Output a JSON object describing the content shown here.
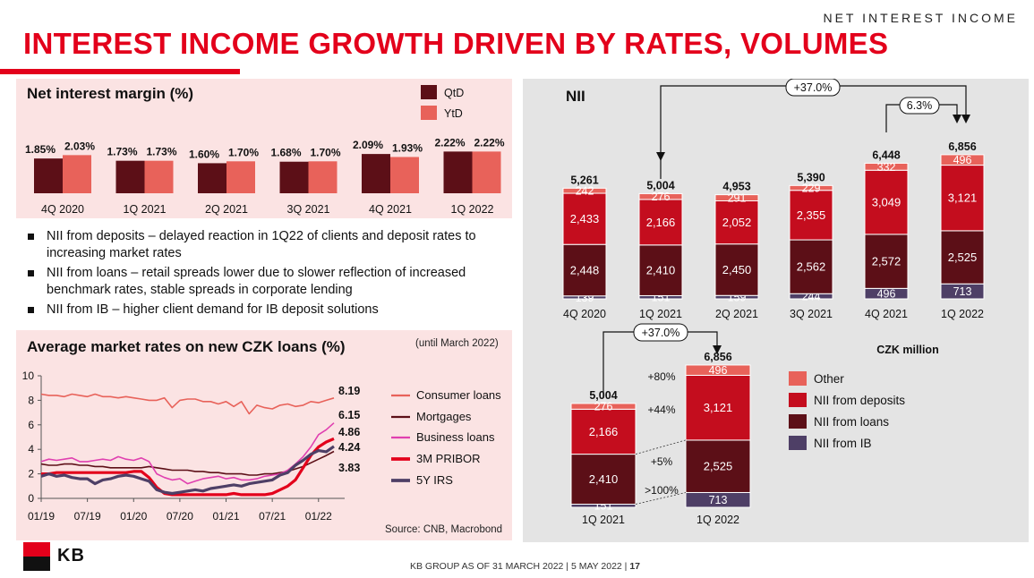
{
  "header": {
    "section_label": "NET INTEREST INCOME",
    "title": "INTEREST INCOME GROWTH DRIVEN BY RATES, VOLUMES"
  },
  "brand": {
    "red": "#e3001b",
    "logo_text": "KB"
  },
  "footer": {
    "group": "KB GROUP AS OF 31 MARCH 2022",
    "date": "5 MAY 2022",
    "page": "17"
  },
  "bullets": [
    "NII from deposits – delayed reaction in 1Q22 of clients and deposit rates to increasing market rates",
    "NII from loans – retail spreads lower due to slower reflection of increased benchmark rates, stable spreads in corporate lending",
    "NII from IB – higher client demand for IB deposit solutions"
  ],
  "colors": {
    "qtd": "#5c0f17",
    "ytd": "#e8625a",
    "other": "#e8625a",
    "deposits": "#c40d1e",
    "loans": "#5c0f17",
    "ib": "#4e3f66",
    "consumer": "#e8625a",
    "mortgages": "#5c0f17",
    "business": "#e040b0",
    "pribor": "#e3001b",
    "irs": "#4e3f66"
  },
  "chart_data": [
    {
      "type": "bar",
      "title": "Net interest margin (%)",
      "categories": [
        "4Q 2020",
        "1Q 2021",
        "2Q 2021",
        "3Q 2021",
        "4Q 2021",
        "1Q 2022"
      ],
      "series": [
        {
          "name": "QtD",
          "values": [
            1.85,
            1.73,
            1.6,
            1.68,
            2.09,
            2.22
          ],
          "labels": [
            "1.85%",
            "1.73%",
            "1.60%",
            "1.68%",
            "2.09%",
            "2.22%"
          ]
        },
        {
          "name": "YtD",
          "values": [
            2.03,
            1.73,
            1.7,
            1.7,
            1.93,
            2.22
          ],
          "labels": [
            "2.03%",
            "1.73%",
            "1.70%",
            "1.70%",
            "1.93%",
            "2.22%"
          ]
        }
      ],
      "legend_position": "top-right"
    },
    {
      "type": "bar",
      "stacked": true,
      "title": "NII",
      "unit": "CZK million",
      "categories": [
        "4Q 2020",
        "1Q 2021",
        "2Q 2021",
        "3Q 2021",
        "4Q 2021",
        "1Q 2022"
      ],
      "totals": [
        5261,
        5004,
        4953,
        5390,
        6448,
        6856
      ],
      "total_labels": [
        "5,261",
        "5,004",
        "4,953",
        "5,390",
        "6,448",
        "6,856"
      ],
      "series": [
        {
          "name": "NII from IB",
          "values": [
            139,
            151,
            159,
            244,
            496,
            713
          ],
          "labels": [
            "139",
            "151",
            "159",
            "244",
            "496",
            "713"
          ]
        },
        {
          "name": "NII from loans",
          "values": [
            2448,
            2410,
            2450,
            2562,
            2572,
            2525
          ],
          "labels": [
            "2,448",
            "2,410",
            "2,450",
            "2,562",
            "2,572",
            "2,525"
          ]
        },
        {
          "name": "NII from deposits",
          "values": [
            2433,
            2166,
            2052,
            2355,
            3049,
            3121
          ],
          "labels": [
            "2,433",
            "2,166",
            "2,052",
            "2,355",
            "3,049",
            "3,121"
          ]
        },
        {
          "name": "Other",
          "values": [
            242,
            276,
            291,
            229,
            332,
            496
          ],
          "labels": [
            "242",
            "276",
            "291",
            "229",
            "332",
            "496"
          ]
        }
      ],
      "annotations": [
        {
          "text": "+37.0%",
          "from": "1Q 2021",
          "to": "1Q 2022"
        },
        {
          "text": "6.3%",
          "from": "4Q 2021",
          "to": "1Q 2022"
        }
      ]
    },
    {
      "type": "bar",
      "stacked": true,
      "categories": [
        "1Q 2021",
        "1Q 2022"
      ],
      "totals": [
        5004,
        6856
      ],
      "total_labels": [
        "5,004",
        "6,856"
      ],
      "series": [
        {
          "name": "NII from IB",
          "values": [
            151,
            713
          ],
          "labels": [
            "151",
            "713"
          ],
          "change": ">100%"
        },
        {
          "name": "NII from loans",
          "values": [
            2410,
            2525
          ],
          "labels": [
            "2,410",
            "2,525"
          ],
          "change": "+5%"
        },
        {
          "name": "NII from deposits",
          "values": [
            2166,
            3121
          ],
          "labels": [
            "2,166",
            "3,121"
          ],
          "change": "+44%"
        },
        {
          "name": "Other",
          "values": [
            276,
            496
          ],
          "labels": [
            "276",
            "496"
          ],
          "change": "+80%"
        }
      ],
      "annotations": [
        {
          "text": "+37.0%",
          "from": "1Q 2021",
          "to": "1Q 2022"
        }
      ],
      "legend": [
        "Other",
        "NII from deposits",
        "NII from loans",
        "NII from IB"
      ],
      "legend_position": "right"
    },
    {
      "type": "line",
      "title": "Average market rates on new CZK loans (%)",
      "note": "(until March 2022)",
      "source": "Source: CNB, Macrobond",
      "x_ticks": [
        "01/19",
        "07/19",
        "01/20",
        "07/20",
        "01/21",
        "07/21",
        "01/22"
      ],
      "ylim": [
        0,
        10
      ],
      "y_ticks": [
        "0",
        "2",
        "4",
        "6",
        "8",
        "10"
      ],
      "months": 39,
      "series": [
        {
          "name": "Consumer loans",
          "end_label": "8.19",
          "values": [
            8.5,
            8.4,
            8.4,
            8.3,
            8.5,
            8.4,
            8.3,
            8.5,
            8.3,
            8.3,
            8.2,
            8.3,
            8.2,
            8.1,
            8.0,
            8.0,
            8.2,
            7.4,
            8.0,
            8.1,
            8.1,
            7.9,
            7.9,
            7.7,
            7.9,
            7.5,
            7.9,
            6.9,
            7.6,
            7.4,
            7.3,
            7.6,
            7.7,
            7.5,
            7.6,
            7.9,
            7.8,
            8.0,
            8.19
          ]
        },
        {
          "name": "Mortgages",
          "end_label": "3.83",
          "values": [
            2.8,
            2.7,
            2.7,
            2.8,
            2.8,
            2.7,
            2.7,
            2.6,
            2.6,
            2.5,
            2.5,
            2.5,
            2.5,
            2.5,
            2.6,
            2.5,
            2.4,
            2.3,
            2.3,
            2.3,
            2.2,
            2.2,
            2.1,
            2.1,
            2.0,
            2.0,
            2.0,
            1.9,
            1.9,
            2.0,
            2.0,
            2.1,
            2.2,
            2.4,
            2.6,
            2.9,
            3.2,
            3.5,
            3.83
          ]
        },
        {
          "name": "Business loans",
          "end_label": "6.15",
          "values": [
            3.0,
            3.2,
            3.1,
            3.2,
            3.3,
            3.0,
            3.0,
            3.1,
            3.2,
            3.1,
            3.4,
            3.2,
            3.1,
            3.3,
            3.0,
            2.0,
            1.7,
            1.5,
            1.6,
            1.2,
            1.4,
            1.6,
            1.7,
            1.8,
            1.6,
            1.7,
            1.5,
            1.5,
            1.6,
            1.8,
            1.9,
            2.0,
            2.3,
            2.8,
            3.4,
            4.2,
            5.2,
            5.6,
            6.15
          ]
        },
        {
          "name": "3M PRIBOR",
          "end_label": "4.86",
          "values": [
            2.0,
            2.0,
            2.1,
            2.1,
            2.1,
            2.1,
            2.1,
            2.1,
            2.1,
            2.1,
            2.1,
            2.1,
            2.2,
            2.2,
            1.7,
            0.9,
            0.4,
            0.3,
            0.3,
            0.3,
            0.3,
            0.3,
            0.3,
            0.3,
            0.3,
            0.4,
            0.3,
            0.3,
            0.3,
            0.3,
            0.4,
            0.7,
            1.0,
            1.5,
            2.5,
            3.5,
            4.2,
            4.6,
            4.86
          ]
        },
        {
          "name": "5Y IRS",
          "end_label": "4.24",
          "values": [
            1.8,
            2.0,
            1.8,
            1.9,
            1.7,
            1.6,
            1.6,
            1.2,
            1.5,
            1.6,
            1.8,
            1.9,
            1.8,
            1.6,
            1.4,
            0.7,
            0.5,
            0.4,
            0.5,
            0.6,
            0.7,
            0.6,
            0.8,
            0.9,
            1.0,
            1.1,
            1.0,
            1.2,
            1.3,
            1.4,
            1.5,
            1.9,
            2.1,
            2.7,
            3.1,
            3.6,
            3.9,
            3.8,
            4.24
          ]
        }
      ],
      "legend_position": "right"
    }
  ]
}
